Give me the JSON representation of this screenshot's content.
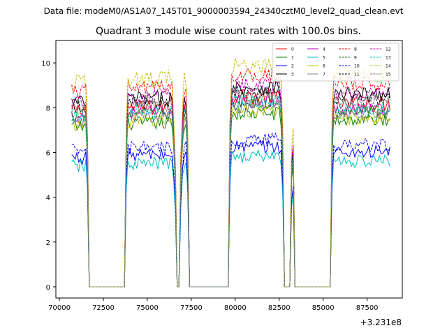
{
  "chart_data": {
    "type": "line",
    "suptitle": "Data file: modeM0/AS1A07_145T01_9000003594_24340cztM0_level2_quad_clean.evt",
    "title": "Quadrant 3 module wise count rates with 100.0s bins.",
    "xlabel": "",
    "ylabel": "",
    "x_offset_label": "+3.231e8",
    "xlim": [
      69800,
      89500
    ],
    "ylim": [
      -0.5,
      11.0
    ],
    "xticks": [
      70000,
      72500,
      75000,
      77500,
      80000,
      82500,
      85000,
      87500
    ],
    "xtick_labels": [
      "70000",
      "72500",
      "75000",
      "77500",
      "80000",
      "82500",
      "85000",
      "87500"
    ],
    "yticks": [
      0,
      2,
      4,
      6,
      8,
      10
    ],
    "ytick_labels": [
      "0",
      "2",
      "4",
      "6",
      "8",
      "10"
    ],
    "grid": false,
    "legend_position": "top-right",
    "gaps": [
      [
        71700,
        73700
      ],
      [
        76620,
        76860
      ],
      [
        77400,
        79600
      ],
      [
        82780,
        83160
      ],
      [
        83380,
        85400
      ]
    ],
    "series": [
      {
        "name": "0",
        "color": "#ff0000",
        "dash": "solid",
        "level": 8.0,
        "noise": 0.35
      },
      {
        "name": "1",
        "color": "#008000",
        "dash": "solid",
        "level": 7.3,
        "noise": 0.3
      },
      {
        "name": "2",
        "color": "#0000ff",
        "dash": "solid",
        "level": 5.9,
        "noise": 0.3
      },
      {
        "name": "3",
        "color": "#000000",
        "dash": "solid",
        "level": 8.4,
        "noise": 0.35
      },
      {
        "name": "4",
        "color": "#bf00bf",
        "dash": "solid",
        "level": 7.8,
        "noise": 0.3
      },
      {
        "name": "5",
        "color": "#00bfbf",
        "dash": "solid",
        "level": 5.5,
        "noise": 0.3
      },
      {
        "name": "6",
        "color": "#bfbf00",
        "dash": "solid",
        "level": 7.4,
        "noise": 0.3
      },
      {
        "name": "7",
        "color": "#808080",
        "dash": "solid",
        "level": 7.6,
        "noise": 0.3
      },
      {
        "name": "8",
        "color": "#ff0000",
        "dash": "dashed",
        "level": 8.9,
        "noise": 0.35
      },
      {
        "name": "9",
        "color": "#008000",
        "dash": "dashed",
        "level": 7.7,
        "noise": 0.3
      },
      {
        "name": "10",
        "color": "#0000ff",
        "dash": "dashed",
        "level": 6.2,
        "noise": 0.3
      },
      {
        "name": "11",
        "color": "#000000",
        "dash": "dashed",
        "level": 8.2,
        "noise": 0.3
      },
      {
        "name": "12",
        "color": "#bf00bf",
        "dash": "dashed",
        "level": 8.5,
        "noise": 0.35
      },
      {
        "name": "13",
        "color": "#00bfbf",
        "dash": "dashed",
        "level": 7.8,
        "noise": 0.3
      },
      {
        "name": "14",
        "color": "#bfbf00",
        "dash": "dashed",
        "level": 9.3,
        "noise": 0.4
      },
      {
        "name": "15",
        "color": "#808080",
        "dash": "dashed",
        "level": 8.1,
        "noise": 0.3
      }
    ]
  }
}
